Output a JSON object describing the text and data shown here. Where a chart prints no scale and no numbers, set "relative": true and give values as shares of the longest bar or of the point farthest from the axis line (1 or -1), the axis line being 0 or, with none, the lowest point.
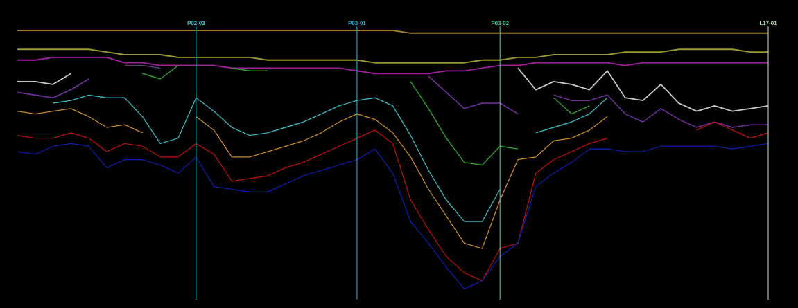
{
  "chart_data": {
    "type": "line",
    "relative": true,
    "categories": [
      null,
      null,
      null,
      null,
      null,
      null,
      null,
      null,
      null,
      null,
      "P02-03",
      null,
      null,
      null,
      null,
      null,
      null,
      null,
      null,
      "P03-01",
      null,
      null,
      null,
      null,
      null,
      null,
      null,
      "P03-02",
      null,
      null,
      null,
      null,
      null,
      null,
      null,
      null,
      null,
      null,
      null,
      null,
      null,
      null,
      "L17-01"
    ],
    "series": [
      {
        "color": "#a07828",
        "values": [
          1.0,
          1.0,
          1.0,
          1.0,
          1.0,
          1.0,
          1.0,
          1.0,
          1.0,
          1.0,
          1.0,
          1.0,
          1.0,
          1.0,
          1.0,
          1.0,
          1.0,
          1.0,
          1.0,
          1.0,
          1.0,
          1.0,
          0.99,
          0.99,
          0.99,
          0.99,
          0.99,
          0.99,
          0.99,
          0.99,
          0.99,
          0.99,
          0.99,
          0.99,
          0.99,
          0.99,
          0.99,
          0.99,
          0.99,
          0.99,
          0.99,
          0.99,
          0.99
        ]
      },
      {
        "color": "#9a9a30",
        "values": [
          0.93,
          0.93,
          0.93,
          0.93,
          0.93,
          0.92,
          0.91,
          0.91,
          0.91,
          0.9,
          0.9,
          0.9,
          0.9,
          0.9,
          0.89,
          0.89,
          0.89,
          0.89,
          0.89,
          0.89,
          0.88,
          0.88,
          0.88,
          0.88,
          0.88,
          0.88,
          0.89,
          0.89,
          0.9,
          0.9,
          0.91,
          0.91,
          0.91,
          0.91,
          0.92,
          0.92,
          0.92,
          0.93,
          0.93,
          0.93,
          0.93,
          0.92,
          0.92
        ]
      },
      {
        "color": "#a020a0",
        "values": [
          0.89,
          0.89,
          0.9,
          0.9,
          0.9,
          0.9,
          0.88,
          0.88,
          0.87,
          0.87,
          0.87,
          0.87,
          0.86,
          0.86,
          0.86,
          0.86,
          0.86,
          0.86,
          0.86,
          0.85,
          0.84,
          0.84,
          0.84,
          0.84,
          0.85,
          0.85,
          0.86,
          0.87,
          0.87,
          0.88,
          0.88,
          0.88,
          0.88,
          0.88,
          0.87,
          0.88,
          0.88,
          0.88,
          0.88,
          0.88,
          0.88,
          0.88,
          0.88
        ]
      },
      {
        "color": "#c8c8c8",
        "values": [
          0.81,
          0.81,
          0.8,
          0.84,
          null,
          null,
          null,
          null,
          null,
          null,
          null,
          null,
          null,
          null,
          null,
          null,
          null,
          null,
          null,
          null,
          null,
          null,
          null,
          null,
          null,
          null,
          null,
          null,
          0.86,
          0.78,
          0.81,
          0.8,
          0.78,
          0.85,
          0.75,
          0.74,
          0.8,
          0.73,
          0.7,
          0.72,
          0.7,
          0.71,
          0.72
        ]
      },
      {
        "color": "#7030a0",
        "values": [
          0.77,
          0.76,
          0.75,
          0.78,
          0.82,
          null,
          null,
          null,
          null,
          null,
          null,
          null,
          null,
          null,
          null,
          null,
          null,
          null,
          null,
          null,
          null,
          null,
          null,
          null,
          null,
          null,
          null,
          null,
          null,
          null,
          null,
          null,
          null,
          null,
          null,
          null,
          null,
          null,
          null,
          null,
          null,
          null,
          null
        ]
      },
      {
        "color": "#5a3a7a",
        "values": [
          null,
          null,
          null,
          null,
          null,
          null,
          0.87,
          0.87,
          0.86,
          null,
          null,
          null,
          null,
          null,
          null,
          null,
          null,
          null,
          null,
          null,
          null,
          null,
          null,
          null,
          null,
          null,
          null,
          null,
          null,
          null,
          null,
          null,
          null,
          null,
          null,
          null,
          null,
          null,
          null,
          null,
          null,
          null,
          null
        ]
      },
      {
        "color": "#7030a0",
        "values": [
          null,
          null,
          null,
          null,
          null,
          null,
          null,
          null,
          null,
          null,
          null,
          null,
          null,
          null,
          null,
          null,
          null,
          null,
          null,
          null,
          null,
          null,
          null,
          0.83,
          0.77,
          0.71,
          0.73,
          0.73,
          0.69,
          null,
          null,
          null,
          null,
          null,
          null,
          null,
          null,
          null,
          null,
          null,
          null,
          null,
          null
        ]
      },
      {
        "color": "#7030a0",
        "values": [
          null,
          null,
          null,
          null,
          null,
          null,
          null,
          null,
          null,
          null,
          null,
          null,
          null,
          null,
          null,
          null,
          null,
          null,
          null,
          null,
          null,
          null,
          null,
          null,
          null,
          null,
          null,
          null,
          null,
          null,
          0.76,
          0.74,
          0.74,
          0.76,
          0.69,
          0.66,
          0.71,
          0.67,
          0.64,
          0.66,
          0.64,
          0.65,
          0.65
        ]
      },
      {
        "color": "#30a030",
        "values": [
          null,
          null,
          null,
          null,
          null,
          null,
          null,
          0.84,
          0.82,
          0.87,
          null,
          null,
          0.86,
          0.85,
          0.85,
          null,
          null,
          null,
          null,
          null,
          null,
          null,
          0.81,
          0.71,
          0.6,
          0.51,
          0.5,
          0.57,
          0.56,
          null,
          0.75,
          0.69,
          0.72,
          null,
          null,
          null,
          null,
          null,
          null,
          null,
          null,
          null,
          null
        ]
      },
      {
        "color": "#38b4b8",
        "values": [
          null,
          null,
          0.73,
          0.74,
          0.76,
          0.75,
          0.75,
          0.68,
          0.58,
          0.6,
          0.75,
          0.7,
          0.64,
          0.61,
          0.62,
          0.64,
          0.66,
          0.69,
          0.72,
          0.74,
          0.75,
          0.72,
          0.61,
          0.48,
          0.37,
          0.29,
          0.29,
          0.41,
          null,
          0.62,
          0.64,
          0.66,
          0.69,
          0.75,
          null,
          null,
          null,
          null,
          null,
          null,
          null,
          null,
          null
        ]
      },
      {
        "color": "#c88a28",
        "values": [
          0.7,
          0.69,
          0.7,
          0.71,
          0.68,
          0.64,
          0.65,
          0.62,
          null,
          null,
          0.68,
          0.63,
          0.53,
          0.53,
          0.55,
          0.57,
          0.59,
          0.62,
          0.66,
          0.69,
          0.67,
          0.62,
          0.53,
          0.41,
          0.31,
          0.21,
          0.19,
          0.37,
          0.52,
          0.53,
          0.59,
          0.6,
          0.63,
          0.68,
          null,
          null,
          null,
          null,
          null,
          null,
          null,
          null,
          null
        ]
      },
      {
        "color": "#c01010",
        "values": [
          0.61,
          0.6,
          0.6,
          0.62,
          0.6,
          0.55,
          0.58,
          0.57,
          0.53,
          0.53,
          0.58,
          0.54,
          0.44,
          0.45,
          0.46,
          0.49,
          0.51,
          0.54,
          0.57,
          0.6,
          0.63,
          0.58,
          0.37,
          0.26,
          0.16,
          0.1,
          0.07,
          0.19,
          0.21,
          0.47,
          0.52,
          0.55,
          0.58,
          0.6,
          null,
          null,
          null,
          null,
          0.63,
          0.66,
          0.63,
          0.6,
          0.62
        ]
      },
      {
        "color": "#1020c0",
        "values": [
          0.55,
          0.54,
          0.57,
          0.58,
          0.57,
          0.49,
          0.52,
          0.52,
          0.5,
          0.47,
          0.53,
          0.42,
          0.41,
          0.4,
          0.4,
          0.43,
          0.46,
          0.48,
          0.5,
          0.52,
          0.56,
          0.47,
          0.29,
          0.21,
          0.12,
          0.04,
          0.07,
          0.16,
          0.21,
          0.42,
          0.47,
          0.51,
          0.56,
          0.56,
          0.55,
          0.55,
          0.57,
          0.57,
          0.57,
          0.57,
          0.56,
          0.57,
          0.58
        ]
      }
    ],
    "ref_lines": [
      {
        "axis": "x",
        "value": "P02-03",
        "color": "#40c8d0"
      },
      {
        "axis": "x",
        "value": "P03-01",
        "color": "#30a8d8"
      },
      {
        "axis": "x",
        "value": "P03-02",
        "color": "#40c8a0"
      },
      {
        "axis": "x",
        "value": "L17-01",
        "color": "#b8d8b8"
      }
    ]
  }
}
